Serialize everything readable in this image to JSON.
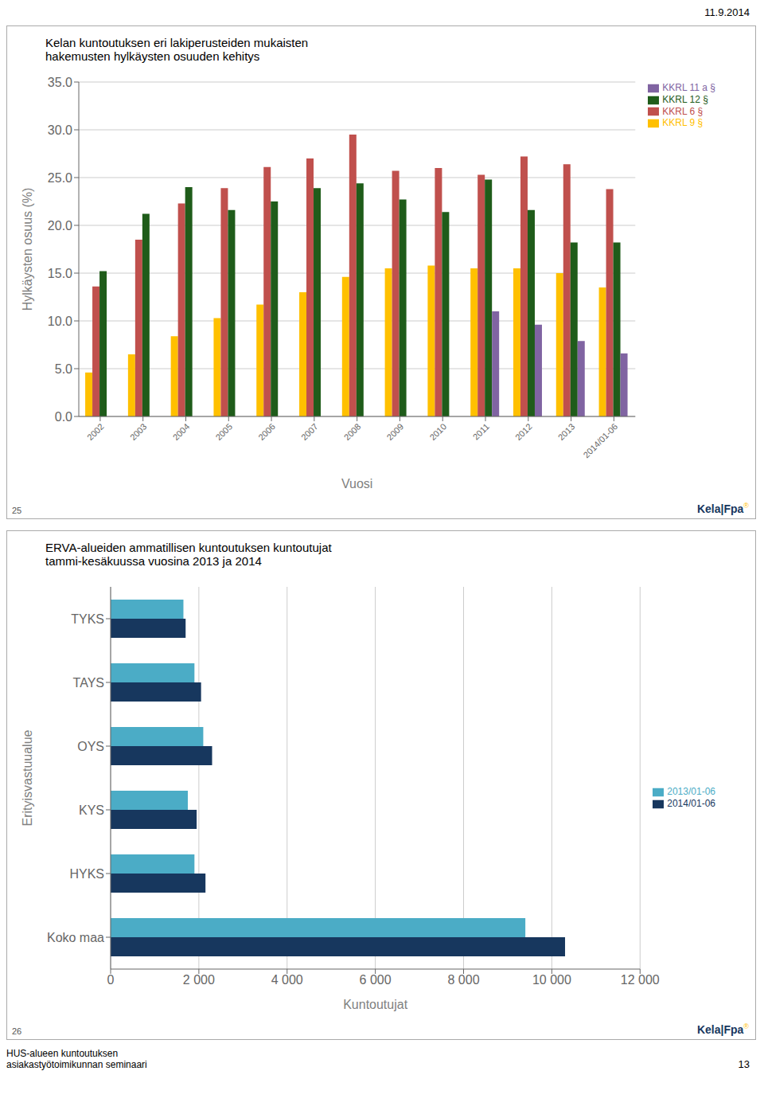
{
  "chart_data": [
    {
      "type": "bar",
      "title": "Kelan kuntoutuksen eri lakiperusteiden mukaisten\nhakemusten hylkäysten osuuden kehitys",
      "xlabel": "Vuosi",
      "ylabel": "Hylkäysten osuus (%)",
      "categories": [
        "2002",
        "2003",
        "2004",
        "2005",
        "2006",
        "2007",
        "2008",
        "2009",
        "2010",
        "2011",
        "2012",
        "2013",
        "2014/01-06"
      ],
      "series": [
        {
          "name": "KKRL 9 §",
          "color": "#FFC000",
          "values": [
            4.6,
            6.5,
            8.4,
            10.3,
            11.7,
            13.0,
            14.6,
            15.5,
            15.8,
            15.5,
            15.5,
            15.0,
            13.5
          ]
        },
        {
          "name": "KKRL 6 §",
          "color": "#C0504D",
          "values": [
            13.6,
            18.5,
            22.3,
            23.9,
            26.1,
            27.0,
            29.5,
            25.7,
            26.0,
            25.3,
            27.2,
            26.4,
            23.8
          ]
        },
        {
          "name": "KKRL 12 §",
          "color": "#1F5C1A",
          "values": [
            15.2,
            21.2,
            24.0,
            21.6,
            22.5,
            23.9,
            24.4,
            22.7,
            21.4,
            24.8,
            21.6,
            18.2,
            18.2
          ]
        },
        {
          "name": "KKRL 11 a §",
          "color": "#8064A2",
          "values": [
            null,
            null,
            null,
            null,
            null,
            null,
            null,
            null,
            null,
            11.0,
            9.6,
            7.9,
            6.6
          ]
        }
      ],
      "ylim": [
        0,
        35
      ],
      "yticks": [
        {
          "value": 0,
          "label": "0.0"
        },
        {
          "value": 5,
          "label": "5.0"
        },
        {
          "value": 10,
          "label": "10.0"
        },
        {
          "value": 15,
          "label": "15.0"
        },
        {
          "value": 20,
          "label": "20.0"
        },
        {
          "value": 25,
          "label": "25.0"
        },
        {
          "value": 30,
          "label": "30.0"
        },
        {
          "value": 35,
          "label": "35.0"
        }
      ],
      "grid": true,
      "legend": "upper right",
      "annotations": [
        "11.9.2014",
        "25",
        "Kela|Fpa",
        "®"
      ]
    },
    {
      "type": "bar",
      "orientation": "horizontal",
      "title": "ERVA-alueiden ammatillisen kuntoutuksen kuntoutujat\ntammi-kesäkuussa vuosina 2013 ja 2014",
      "xlabel": "Kuntoutujat",
      "ylabel": "Erityisvastuualue",
      "categories": [
        "TYKS",
        "TAYS",
        "OYS",
        "KYS",
        "HYKS",
        "Koko maa"
      ],
      "series": [
        {
          "name": "2013/01-06",
          "color": "#4BACC6",
          "values": [
            1650,
            1900,
            2100,
            1750,
            1900,
            9400
          ]
        },
        {
          "name": "2014/01-06",
          "color": "#17375E",
          "values": [
            1700,
            2050,
            2300,
            1950,
            2150,
            10300
          ]
        }
      ],
      "xlim": [
        0,
        12000
      ],
      "xticks": [
        0,
        {
          "value": 2000,
          "label": "2 000"
        },
        {
          "value": 4000,
          "label": "4 000"
        },
        {
          "value": 6000,
          "label": "6 000"
        },
        {
          "value": 8000,
          "label": "8 000"
        },
        {
          "value": 10000,
          "label": "10 000"
        },
        {
          "value": 12000,
          "label": "12 000"
        }
      ],
      "grid": true,
      "legend": "right",
      "annotations": [
        "26",
        "Kela|Fpa",
        "®",
        "HUS-alueen kuntoutuksen\nasiakastyötoimikunnan seminaari",
        "13"
      ]
    }
  ]
}
